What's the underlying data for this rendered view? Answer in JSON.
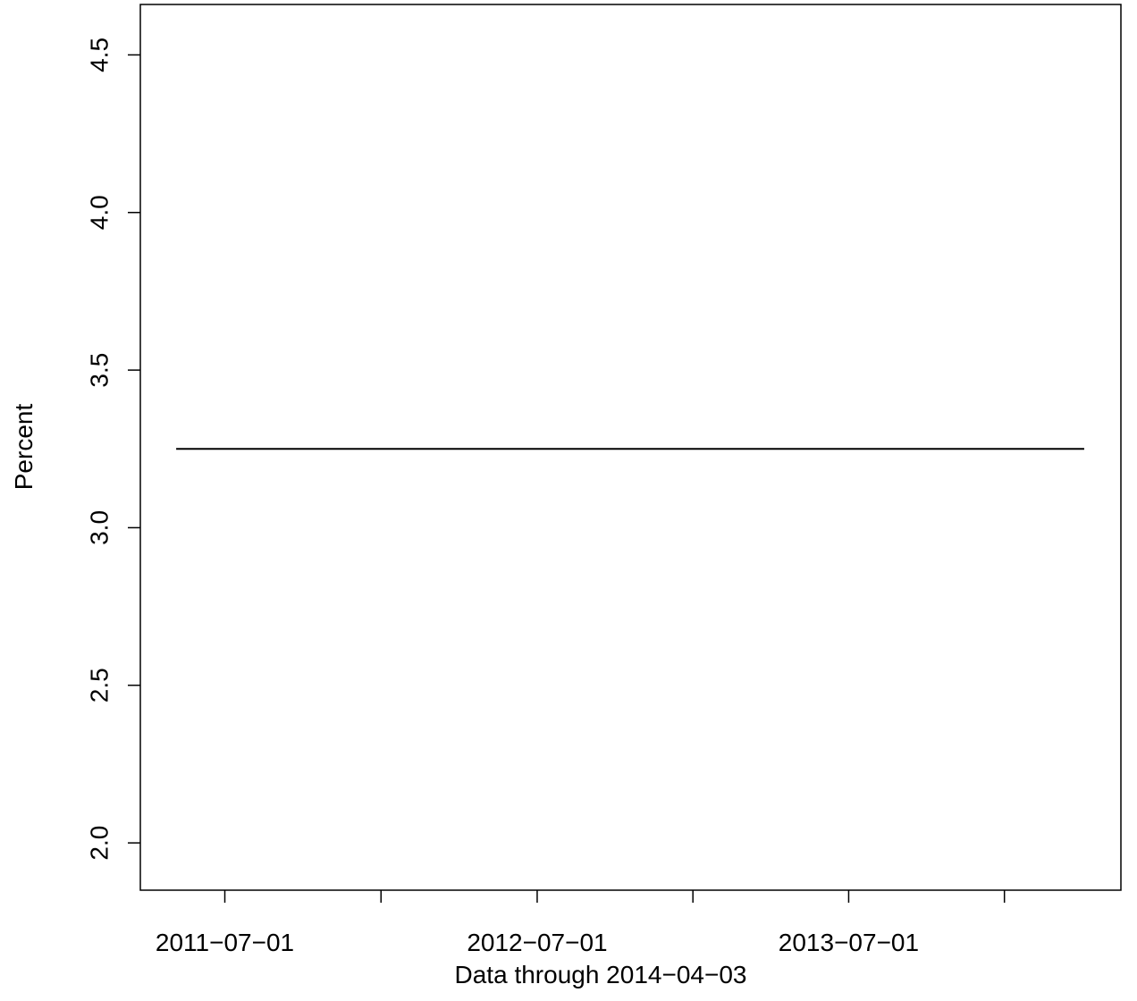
{
  "chart_data": {
    "type": "line",
    "x_label": "Data through 2014−04−03",
    "y_label": "Percent",
    "x": [
      "2011-05-05",
      "2014-04-03"
    ],
    "series": [
      {
        "color": "#000000",
        "values": [
          3.25,
          3.25
        ]
      }
    ],
    "xlim": [
      "2011-03-24",
      "2014-05-16"
    ],
    "xticks": [
      "2011−07−01",
      null,
      "2012−07−01",
      null,
      "2013−07−01",
      null
    ],
    "ylim": [
      1.85,
      4.66
    ],
    "yticks": [
      {
        "value": 2,
        "label": "2.0"
      },
      2.5,
      {
        "value": 3,
        "label": "3.0"
      },
      3.5,
      {
        "value": 4,
        "label": "4.0"
      },
      4.5
    ],
    "grid": false
  }
}
